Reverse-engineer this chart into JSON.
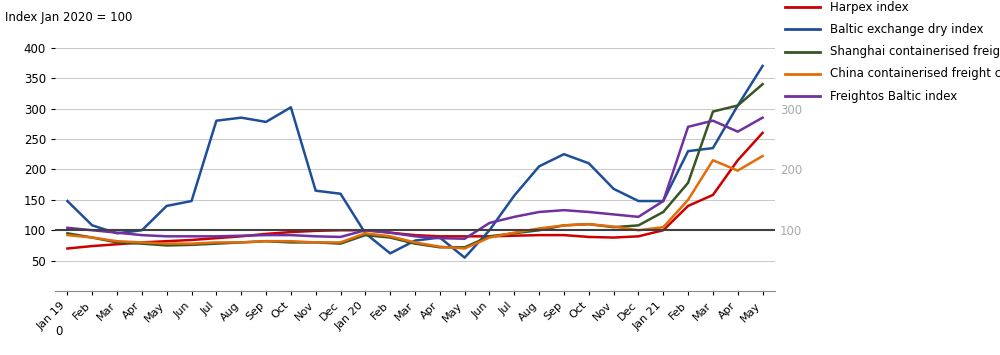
{
  "ylabel": "Index Jan 2020 = 100",
  "ylim": [
    0,
    420
  ],
  "yticks_left": [
    50,
    100,
    150,
    200,
    250,
    300,
    350,
    400
  ],
  "yticks_right": [
    100,
    200,
    300
  ],
  "x_labels": [
    "Jan 19",
    "Feb",
    "Mar",
    "Apr",
    "May",
    "Jun",
    "Jul",
    "Aug",
    "Sep",
    "Oct",
    "Nov",
    "Dec",
    "Jan 20",
    "Feb",
    "Mar",
    "Apr",
    "May",
    "Jun",
    "Jul",
    "Aug",
    "Sep",
    "Oct",
    "Nov",
    "Dec",
    "Jan 21",
    "Feb",
    "Mar",
    "Apr",
    "May"
  ],
  "series": [
    {
      "name": "Harpex index",
      "color": "#cc0000",
      "linewidth": 1.8,
      "data": [
        70,
        74,
        77,
        80,
        82,
        84,
        87,
        90,
        94,
        97,
        99,
        100,
        100,
        96,
        92,
        90,
        90,
        90,
        91,
        92,
        92,
        89,
        88,
        90,
        100,
        140,
        158,
        215,
        260
      ]
    },
    {
      "name": "Baltic exchange dry index",
      "color": "#1f4e99",
      "linewidth": 1.8,
      "data": [
        148,
        108,
        95,
        100,
        140,
        148,
        280,
        285,
        278,
        302,
        165,
        160,
        95,
        62,
        83,
        88,
        55,
        100,
        157,
        205,
        225,
        210,
        168,
        148,
        148,
        230,
        235,
        305,
        370
      ]
    },
    {
      "name": "Shanghai containerised freight composite index",
      "color": "#375623",
      "linewidth": 1.8,
      "data": [
        95,
        88,
        80,
        78,
        75,
        76,
        78,
        80,
        82,
        80,
        80,
        78,
        92,
        88,
        78,
        72,
        72,
        90,
        95,
        100,
        108,
        110,
        105,
        108,
        130,
        178,
        295,
        305,
        340
      ]
    },
    {
      "name": "China containerised freight composite index",
      "color": "#e36c09",
      "linewidth": 1.8,
      "data": [
        92,
        88,
        82,
        80,
        78,
        78,
        80,
        80,
        82,
        82,
        80,
        80,
        95,
        90,
        80,
        73,
        70,
        88,
        96,
        103,
        108,
        110,
        106,
        100,
        105,
        150,
        215,
        198,
        222
      ]
    },
    {
      "name": "Freightos Baltic index",
      "color": "#7030a0",
      "linewidth": 1.8,
      "data": [
        104,
        100,
        96,
        92,
        90,
        90,
        90,
        91,
        92,
        92,
        90,
        89,
        100,
        96,
        90,
        87,
        86,
        112,
        122,
        130,
        133,
        130,
        126,
        122,
        148,
        270,
        280,
        262,
        285
      ]
    }
  ],
  "hline_y": 100,
  "hline_color": "#404040",
  "hline_linewidth": 1.5,
  "background_color": "#ffffff",
  "grid_color": "#c8c8c8",
  "right_tick_color": "#aaaaaa"
}
